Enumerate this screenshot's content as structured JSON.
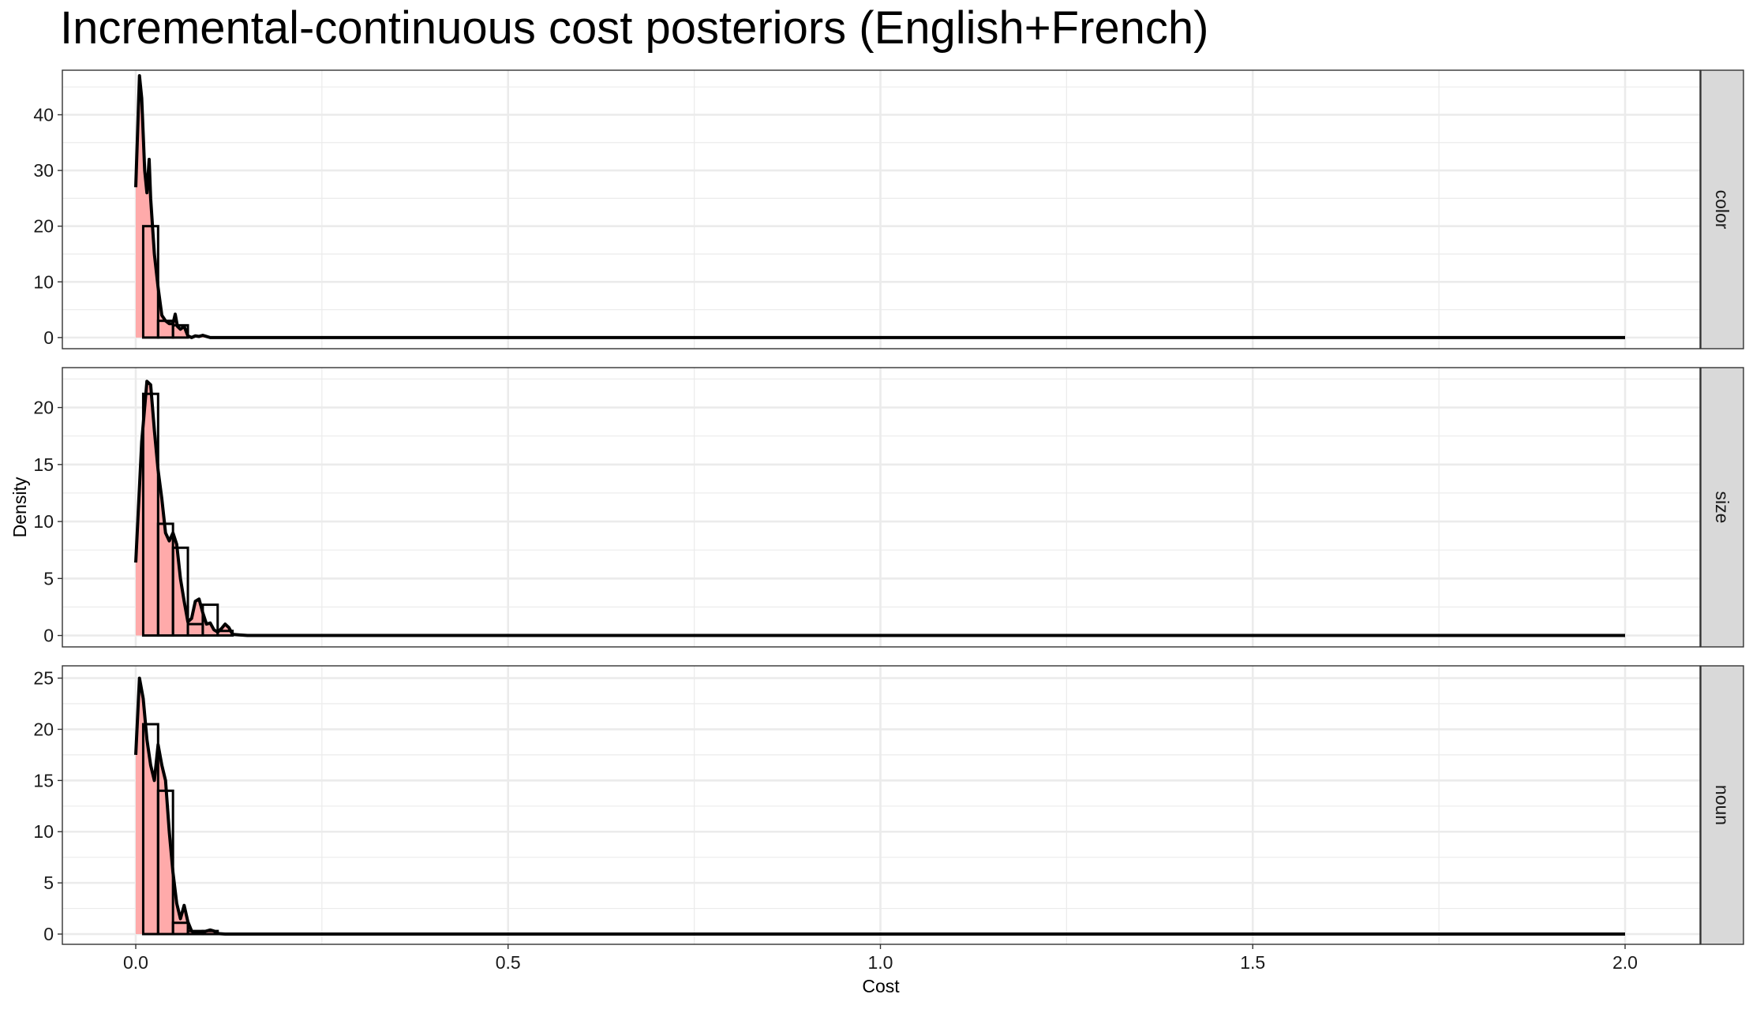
{
  "chart_data": {
    "type": "area",
    "title": "Incremental-continuous cost posteriors (English+French)",
    "xlabel": "Cost",
    "ylabel": "Density",
    "xlim": [
      0,
      2
    ],
    "x_ticks": [
      "0.0",
      "0.5",
      "1.0",
      "1.5",
      "2.0"
    ],
    "grid": true,
    "colors": {
      "fill": "#ffaaaa",
      "line": "#000000",
      "strip_bg": "#d9d9d9",
      "grid": "#ebebeb"
    },
    "panels": [
      {
        "strip": "color",
        "ylim": [
          -2,
          48
        ],
        "y_ticks": [
          "0",
          "10",
          "20",
          "30",
          "40"
        ],
        "y_tick_values": [
          0,
          10,
          20,
          30,
          40
        ],
        "histogram": {
          "bin_edges": [
            0.01,
            0.03,
            0.05,
            0.07
          ],
          "values": [
            20,
            3,
            2.2
          ]
        },
        "density": {
          "x": [
            0.0,
            0.005,
            0.008,
            0.012,
            0.015,
            0.018,
            0.02,
            0.025,
            0.03,
            0.035,
            0.04,
            0.045,
            0.05,
            0.053,
            0.056,
            0.06,
            0.065,
            0.07,
            0.075,
            0.08,
            0.085,
            0.09,
            0.1,
            0.12,
            2.0
          ],
          "y": [
            27,
            47,
            43,
            30,
            26,
            32,
            25,
            15,
            9,
            4,
            3,
            2.5,
            2.5,
            4.2,
            2,
            1.5,
            2,
            0.3,
            0,
            0.3,
            0.2,
            0.4,
            0,
            0,
            0
          ]
        }
      },
      {
        "strip": "size",
        "ylim": [
          -1,
          23.5
        ],
        "y_ticks": [
          "0",
          "5",
          "10",
          "15",
          "20"
        ],
        "y_tick_values": [
          0,
          5,
          10,
          15,
          20
        ],
        "histogram": {
          "bin_edges": [
            0.01,
            0.03,
            0.05,
            0.07,
            0.09,
            0.11,
            0.13
          ],
          "values": [
            21.2,
            9.8,
            7.7,
            1.0,
            2.7,
            0.4
          ]
        },
        "density": {
          "x": [
            0.0,
            0.008,
            0.015,
            0.02,
            0.025,
            0.03,
            0.035,
            0.04,
            0.045,
            0.05,
            0.055,
            0.06,
            0.065,
            0.07,
            0.075,
            0.08,
            0.085,
            0.09,
            0.095,
            0.1,
            0.105,
            0.11,
            0.115,
            0.12,
            0.125,
            0.13,
            0.14,
            0.15,
            2.0
          ],
          "y": [
            6.4,
            17,
            22.3,
            22,
            18,
            14.5,
            12,
            9,
            8.3,
            9,
            8,
            5,
            3,
            1.2,
            1.5,
            3,
            3.2,
            2,
            1,
            1.1,
            0.5,
            0.3,
            0.6,
            1,
            0.7,
            0.1,
            0.05,
            0,
            0
          ]
        }
      },
      {
        "strip": "noun",
        "ylim": [
          -1,
          26.2
        ],
        "y_ticks": [
          "0",
          "5",
          "10",
          "15",
          "20",
          "25"
        ],
        "y_tick_values": [
          0,
          5,
          10,
          15,
          20,
          25
        ],
        "histogram": {
          "bin_edges": [
            0.01,
            0.03,
            0.05,
            0.07,
            0.09,
            0.11
          ],
          "values": [
            20.5,
            14,
            1.1,
            0.3,
            0.3
          ]
        },
        "density": {
          "x": [
            0.0,
            0.005,
            0.01,
            0.015,
            0.02,
            0.025,
            0.03,
            0.035,
            0.04,
            0.045,
            0.05,
            0.055,
            0.06,
            0.065,
            0.07,
            0.075,
            0.08,
            0.085,
            0.09,
            0.095,
            0.1,
            0.105,
            0.11,
            0.12,
            2.0
          ],
          "y": [
            17.5,
            25,
            23,
            19,
            16.5,
            15,
            18.5,
            16.5,
            15,
            10,
            6,
            3,
            1.5,
            2.8,
            1.2,
            0.3,
            0.1,
            0.1,
            0.2,
            0.3,
            0.4,
            0.3,
            0.05,
            0,
            0
          ]
        }
      }
    ]
  }
}
